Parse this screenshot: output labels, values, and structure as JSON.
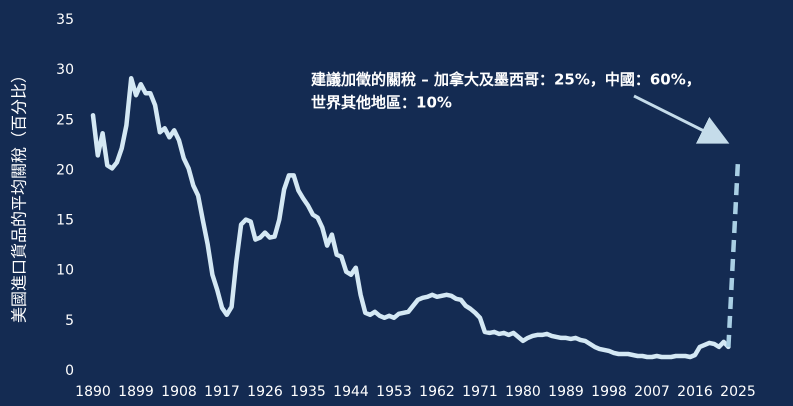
{
  "chart_data": {
    "type": "line",
    "y_label": "美國進口貨品的平均關稅（百分比）",
    "annotation": {
      "lines": [
        "建議加徵的關稅 – 加拿大及墨西哥：25%，中國：60%，",
        "世界其他地區：10%"
      ]
    },
    "xlim": [
      1890,
      2025
    ],
    "xticks": [
      1890,
      1899,
      1908,
      1917,
      1926,
      1935,
      1944,
      1953,
      1962,
      1971,
      1980,
      1989,
      1998,
      2007,
      2016,
      2025
    ],
    "ylim": [
      0,
      35
    ],
    "yticks": [
      0,
      5,
      10,
      15,
      20,
      25,
      30,
      35
    ],
    "grid": false,
    "series": [
      {
        "color": "#d4e8f4",
        "dashed": false,
        "x": [
          1890,
          1891,
          1892,
          1893,
          1894,
          1895,
          1896,
          1897,
          1898,
          1899,
          1900,
          1901,
          1902,
          1903,
          1904,
          1905,
          1906,
          1907,
          1908,
          1909,
          1910,
          1911,
          1912,
          1913,
          1914,
          1915,
          1916,
          1917,
          1918,
          1919,
          1920,
          1921,
          1922,
          1923,
          1924,
          1925,
          1926,
          1927,
          1928,
          1929,
          1930,
          1931,
          1932,
          1933,
          1934,
          1935,
          1936,
          1937,
          1938,
          1939,
          1940,
          1941,
          1942,
          1943,
          1944,
          1945,
          1946,
          1947,
          1948,
          1949,
          1950,
          1951,
          1952,
          1953,
          1954,
          1955,
          1956,
          1957,
          1958,
          1959,
          1960,
          1961,
          1962,
          1963,
          1964,
          1965,
          1966,
          1967,
          1968,
          1969,
          1970,
          1971,
          1972,
          1973,
          1974,
          1975,
          1976,
          1977,
          1978,
          1979,
          1980,
          1981,
          1982,
          1983,
          1984,
          1985,
          1986,
          1987,
          1988,
          1989,
          1990,
          1991,
          1992,
          1993,
          1994,
          1995,
          1996,
          1997,
          1998,
          1999,
          2000,
          2001,
          2002,
          2003,
          2004,
          2005,
          2006,
          2007,
          2008,
          2009,
          2010,
          2011,
          2012,
          2013,
          2014,
          2015,
          2016,
          2017,
          2018,
          2019,
          2020,
          2021,
          2022,
          2023
        ],
        "values": [
          25.5,
          21.5,
          23.7,
          20.5,
          20.2,
          20.8,
          22.2,
          24.5,
          29.2,
          27.5,
          28.6,
          27.7,
          27.7,
          26.5,
          23.8,
          24.2,
          23.3,
          24.0,
          23.0,
          21.2,
          20.2,
          18.5,
          17.5,
          15.0,
          12.6,
          9.6,
          8.1,
          6.3,
          5.6,
          6.4,
          10.9,
          14.6,
          15.1,
          14.9,
          13.1,
          13.3,
          13.8,
          13.3,
          13.4,
          15.1,
          18.1,
          19.5,
          19.5,
          18.0,
          17.2,
          16.5,
          15.6,
          15.3,
          14.3,
          12.5,
          13.6,
          11.6,
          11.4,
          9.9,
          9.6,
          10.3,
          7.6,
          5.8,
          5.6,
          5.9,
          5.5,
          5.3,
          5.5,
          5.3,
          5.7,
          5.8,
          5.9,
          6.5,
          7.1,
          7.3,
          7.4,
          7.6,
          7.4,
          7.5,
          7.6,
          7.5,
          7.2,
          7.1,
          6.5,
          6.2,
          5.8,
          5.3,
          3.9,
          3.8,
          3.9,
          3.7,
          3.8,
          3.6,
          3.8,
          3.4,
          3.0,
          3.3,
          3.5,
          3.6,
          3.6,
          3.7,
          3.5,
          3.4,
          3.3,
          3.3,
          3.2,
          3.3,
          3.1,
          3.0,
          2.7,
          2.4,
          2.2,
          2.1,
          2.0,
          1.8,
          1.7,
          1.7,
          1.7,
          1.6,
          1.5,
          1.5,
          1.4,
          1.4,
          1.5,
          1.4,
          1.4,
          1.4,
          1.5,
          1.5,
          1.5,
          1.4,
          1.6,
          2.4,
          2.6,
          2.8,
          2.7,
          2.4,
          2.9,
          2.4
        ]
      },
      {
        "color": "#a9cfe4",
        "dashed": true,
        "x": [
          2023,
          2025
        ],
        "values": [
          2.4,
          21
        ]
      }
    ]
  }
}
